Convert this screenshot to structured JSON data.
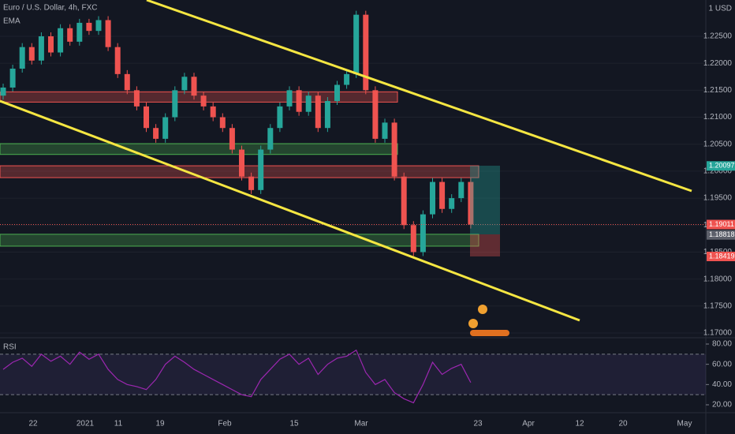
{
  "chart_data": {
    "type": "candlestick",
    "title": "Euro / U.S. Dollar, 4h, FXC",
    "indicator": "EMA",
    "currency": "1 USD",
    "candles": {
      "open": [
        1.214,
        1.2155,
        1.219,
        1.223,
        1.2205,
        1.225,
        1.222,
        1.2265,
        1.224,
        1.2275,
        1.226,
        1.228,
        1.223,
        1.218,
        1.215,
        1.212,
        1.208,
        1.206,
        1.21,
        1.215,
        1.2175,
        1.214,
        1.212,
        1.21,
        1.208,
        1.204,
        1.199,
        1.1965,
        1.204,
        1.208,
        1.212,
        1.215,
        1.211,
        1.214,
        1.208,
        1.213,
        1.216,
        1.218,
        1.229,
        1.215,
        1.206,
        1.209,
        1.199,
        1.19,
        1.185,
        1.192,
        1.198,
        1.193,
        1.195,
        1.198
      ],
      "close": [
        1.2155,
        1.219,
        1.223,
        1.2205,
        1.225,
        1.222,
        1.2265,
        1.224,
        1.2275,
        1.226,
        1.228,
        1.223,
        1.218,
        1.215,
        1.212,
        1.208,
        1.206,
        1.21,
        1.215,
        1.2175,
        1.214,
        1.212,
        1.21,
        1.208,
        1.204,
        1.199,
        1.1965,
        1.204,
        1.208,
        1.212,
        1.215,
        1.211,
        1.214,
        1.208,
        1.213,
        1.216,
        1.218,
        1.229,
        1.215,
        1.206,
        1.209,
        1.199,
        1.19,
        1.185,
        1.192,
        1.198,
        1.193,
        1.195,
        1.198,
        1.1901
      ],
      "up_color": "#26a69a",
      "down_color": "#ef5350"
    },
    "ylim": [
      1.17,
      1.23
    ],
    "yticks": [
      {
        "value": 1.225,
        "label": "1.22500"
      },
      {
        "value": 1.22,
        "label": "1.22000"
      },
      {
        "value": 1.215,
        "label": "1.21500"
      },
      {
        "value": 1.21,
        "label": "1.21000"
      },
      {
        "value": 1.205,
        "label": "1.20500"
      },
      {
        "value": 1.2,
        "label": "1.20000"
      },
      {
        "value": 1.195,
        "label": "1.19500"
      },
      {
        "value": 1.19,
        "label": "1.19000"
      },
      {
        "value": 1.185,
        "label": "1.18500"
      },
      {
        "value": 1.18,
        "label": "1.18000"
      },
      {
        "value": 1.175,
        "label": "1.17500"
      },
      {
        "value": 1.17,
        "label": "1.17000"
      }
    ],
    "zones": [
      {
        "low": 1.2128,
        "high": 1.2147,
        "color": "#ef5350"
      },
      {
        "low": 1.2031,
        "high": 1.2051,
        "color": "#4caf50"
      },
      {
        "low": 1.1988,
        "high": 1.201,
        "color": "#ef5350"
      },
      {
        "low": 1.1861,
        "high": 1.1883,
        "color": "#4caf50"
      }
    ],
    "price_tags": [
      {
        "value": 1.20097,
        "label": "1.20097",
        "color": "#26a69a"
      },
      {
        "value": 1.19011,
        "label": "1.19011",
        "color": "#ef5350"
      },
      {
        "value": 1.18818,
        "label": "1.18818",
        "color": "#5d606b"
      },
      {
        "value": 1.18419,
        "label": "1.18419",
        "color": "#ef5350"
      }
    ],
    "xticks": [
      "22",
      "2021",
      "11",
      "19",
      "Feb",
      "15",
      "Mar",
      "23",
      "Apr",
      "12",
      "20",
      "May"
    ],
    "rsi": {
      "name": "RSI",
      "color": "#9c27b0",
      "values": [
        55,
        62,
        66,
        58,
        70,
        63,
        68,
        60,
        72,
        65,
        70,
        55,
        45,
        40,
        38,
        35,
        45,
        60,
        68,
        62,
        55,
        50,
        45,
        40,
        35,
        30,
        28,
        45,
        55,
        65,
        70,
        60,
        66,
        50,
        60,
        66,
        68,
        74,
        52,
        40,
        45,
        32,
        26,
        22,
        40,
        62,
        50,
        56,
        60,
        42
      ],
      "ylim": [
        10,
        90
      ],
      "yticks": [
        {
          "value": 80,
          "label": "80.00"
        },
        {
          "value": 60,
          "label": "60.00"
        },
        {
          "value": 40,
          "label": "40.00"
        },
        {
          "value": 20,
          "label": "20.00"
        }
      ],
      "bands": [
        30,
        70
      ]
    }
  }
}
